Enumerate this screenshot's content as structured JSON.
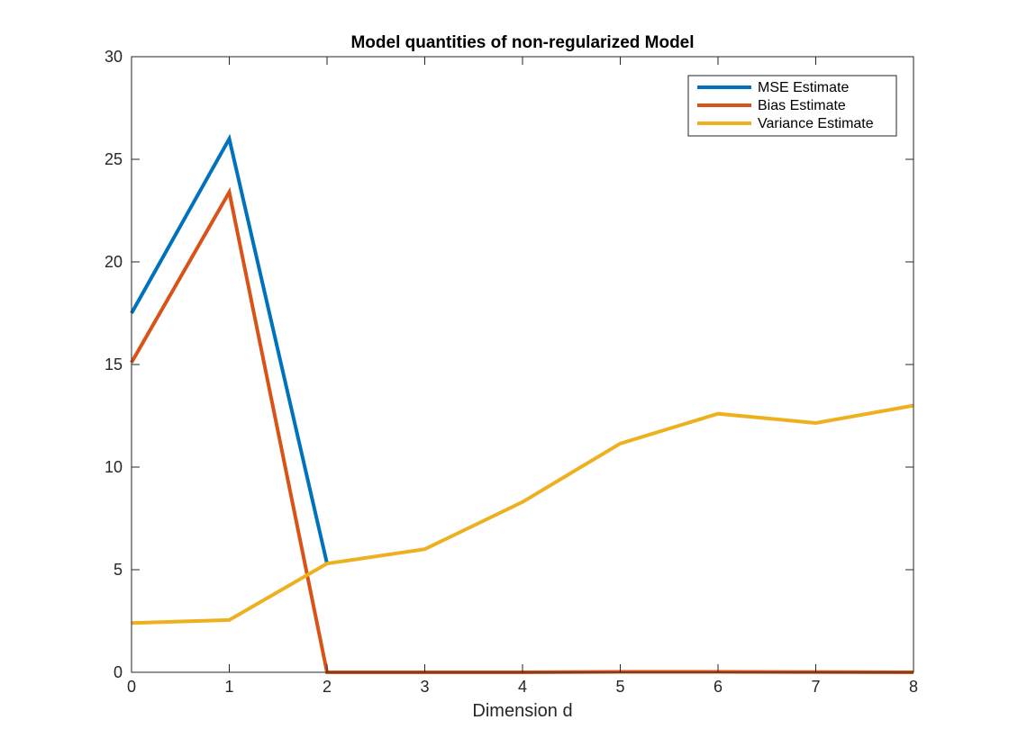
{
  "chart_data": {
    "type": "line",
    "title": "Model quantities of non-regularized Model",
    "xlabel": "Dimension d",
    "ylabel": "",
    "xlim": [
      0,
      8
    ],
    "ylim": [
      0,
      30
    ],
    "xticks": [
      "0",
      "1",
      "2",
      "3",
      "4",
      "5",
      "6",
      "7",
      "8"
    ],
    "yticks": [
      "0",
      "5",
      "10",
      "15",
      "20",
      "25",
      "30"
    ],
    "grid": false,
    "legend_position": "top-right",
    "series": [
      {
        "name": "MSE Estimate",
        "color": "#0072BD",
        "x": [
          0,
          1,
          2
        ],
        "y": [
          17.5,
          26.0,
          5.3
        ]
      },
      {
        "name": "Bias Estimate",
        "color": "#D95319",
        "x": [
          0,
          1,
          2,
          3,
          4,
          5,
          6,
          7,
          8
        ],
        "y": [
          15.1,
          23.4,
          0.0,
          0.0,
          0.0,
          0.02,
          0.02,
          0.01,
          0.0
        ]
      },
      {
        "name": "Variance Estimate",
        "color": "#EDB120",
        "x": [
          0,
          1,
          2,
          3,
          4,
          5,
          6,
          7,
          8
        ],
        "y": [
          2.4,
          2.55,
          5.3,
          6.0,
          8.3,
          11.15,
          12.6,
          12.15,
          13.0
        ]
      }
    ]
  }
}
